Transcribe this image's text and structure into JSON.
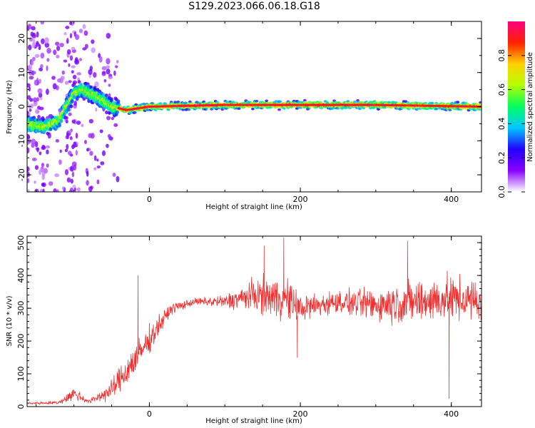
{
  "title": "S129.2023.066.06.18.G18",
  "colors": {
    "snr_line": "#f03030",
    "background": "#ffffff"
  },
  "colormap": [
    "#ffffff",
    "#8a00ff",
    "#2200ff",
    "#00c8ff",
    "#00ff60",
    "#b4ff00",
    "#ffd000",
    "#ff2000",
    "#ff0080"
  ],
  "chart_data": [
    {
      "type": "heatmap",
      "name": "spectrogram",
      "xlabel": "Height of straight line (km)",
      "ylabel": "Frequency (Hz)",
      "xlim": [
        -162,
        440
      ],
      "ylim": [
        -25,
        25
      ],
      "xticks": [
        0,
        200,
        400
      ],
      "yticks": [
        -20,
        -10,
        0,
        10,
        20
      ],
      "colorbar": {
        "label": "Normalized spectral amplitude",
        "range": [
          0.0,
          1.0
        ],
        "ticks": [
          "0.0",
          "0.2",
          "0.4",
          "0.6",
          "0.8"
        ]
      },
      "ridge": [
        {
          "x": -162,
          "y": -5
        },
        {
          "x": -140,
          "y": -6
        },
        {
          "x": -120,
          "y": -4
        },
        {
          "x": -110,
          "y": 0
        },
        {
          "x": -100,
          "y": 4
        },
        {
          "x": -90,
          "y": 5
        },
        {
          "x": -70,
          "y": 3
        },
        {
          "x": -50,
          "y": 0
        },
        {
          "x": -30,
          "y": -1
        },
        {
          "x": 0,
          "y": 0
        },
        {
          "x": 100,
          "y": 0.5
        },
        {
          "x": 200,
          "y": 0.5
        },
        {
          "x": 300,
          "y": 0.5
        },
        {
          "x": 440,
          "y": 0
        }
      ]
    },
    {
      "type": "line",
      "name": "snr",
      "xlabel": "Height of straight line (km)",
      "ylabel": "SNR (10 * v/v)",
      "xlim": [
        -162,
        440
      ],
      "ylim": [
        0,
        520
      ],
      "xticks": [
        0,
        200,
        400
      ],
      "yticks": [
        0,
        100,
        200,
        300,
        400,
        500
      ],
      "envelope": [
        {
          "x": -162,
          "mean": 10,
          "spread": 5
        },
        {
          "x": -120,
          "mean": 12,
          "spread": 6
        },
        {
          "x": -100,
          "mean": 40,
          "spread": 25
        },
        {
          "x": -80,
          "mean": 15,
          "spread": 8
        },
        {
          "x": -50,
          "mean": 50,
          "spread": 35
        },
        {
          "x": -30,
          "mean": 110,
          "spread": 60
        },
        {
          "x": -10,
          "mean": 170,
          "spread": 55
        },
        {
          "x": 10,
          "mean": 240,
          "spread": 40
        },
        {
          "x": 30,
          "mean": 300,
          "spread": 20
        },
        {
          "x": 60,
          "mean": 320,
          "spread": 12
        },
        {
          "x": 100,
          "mean": 320,
          "spread": 25
        },
        {
          "x": 140,
          "mean": 340,
          "spread": 60
        },
        {
          "x": 180,
          "mean": 330,
          "spread": 80
        },
        {
          "x": 200,
          "mean": 300,
          "spread": 50
        },
        {
          "x": 250,
          "mean": 320,
          "spread": 40
        },
        {
          "x": 300,
          "mean": 310,
          "spread": 60
        },
        {
          "x": 350,
          "mean": 320,
          "spread": 80
        },
        {
          "x": 400,
          "mean": 330,
          "spread": 80
        },
        {
          "x": 440,
          "mean": 320,
          "spread": 70
        }
      ],
      "spikes": [
        {
          "x": -15,
          "y": 400
        },
        {
          "x": 152,
          "y": 490
        },
        {
          "x": 178,
          "y": 515
        },
        {
          "x": 196,
          "y": 150
        },
        {
          "x": 342,
          "y": 505
        },
        {
          "x": 397,
          "y": 25
        }
      ]
    }
  ]
}
